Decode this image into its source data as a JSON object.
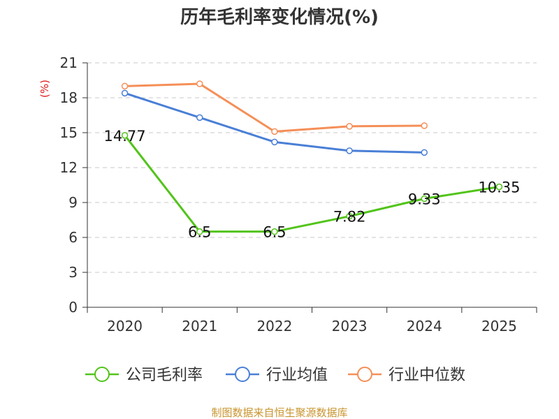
{
  "chart_data": {
    "type": "line",
    "title": "历年毛利率变化情况(%)",
    "ylabel": "(%)",
    "xlabel": "",
    "categories": [
      "2020",
      "2021",
      "2022",
      "2023",
      "2024",
      "2025"
    ],
    "ylim": [
      0,
      21
    ],
    "yticks": [
      0,
      3,
      6,
      9,
      12,
      15,
      18,
      21
    ],
    "grid": true,
    "legend_position": "bottom",
    "series": [
      {
        "name": "公司毛利率",
        "color": "#52c41a",
        "values": [
          14.77,
          6.5,
          6.5,
          7.82,
          9.33,
          10.35
        ],
        "labels": [
          "14.77",
          "6.5",
          "6.5",
          "7.82",
          "9.33",
          "10.35"
        ]
      },
      {
        "name": "行业均值",
        "color": "#4a7fd6",
        "values": [
          18.4,
          16.3,
          14.2,
          13.45,
          13.3,
          null
        ]
      },
      {
        "name": "行业中位数",
        "color": "#f58f58",
        "values": [
          19.0,
          19.2,
          15.1,
          15.55,
          15.6,
          null
        ]
      }
    ],
    "source": "制图数据来自恒生聚源数据库"
  }
}
